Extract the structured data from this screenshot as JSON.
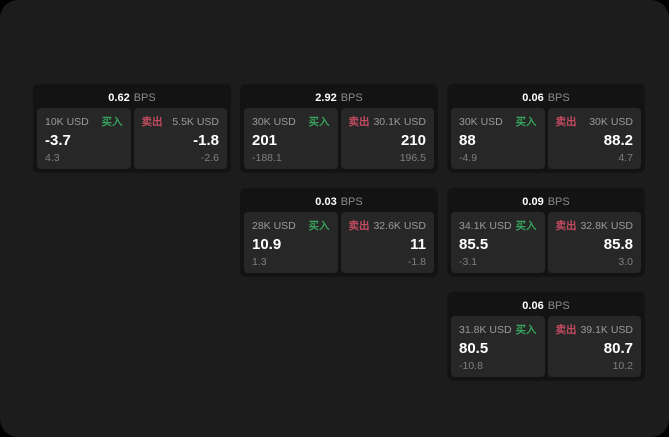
{
  "labels": {
    "bps": "BPS",
    "buy": "买入",
    "sell": "卖出"
  },
  "colors": {
    "background": "#000000",
    "panel": "#1c1c1c",
    "card": "#131313",
    "tile": "#272727",
    "buy_green": "#36a05c",
    "sell_red": "#c24b60",
    "value_text": "#ffffff",
    "muted_text": "#9a9a9a"
  },
  "cards": [
    {
      "bps": "0.62",
      "buy": {
        "size": "10K USD",
        "value": "-3.7",
        "sub": "4.3"
      },
      "sell": {
        "size": "5.5K USD",
        "value": "-1.8",
        "sub": "-2.6"
      }
    },
    {
      "bps": "2.92",
      "buy": {
        "size": "30K USD",
        "value": "201",
        "sub": "-188.1"
      },
      "sell": {
        "size": "30.1K USD",
        "value": "210",
        "sub": "196.5"
      }
    },
    {
      "bps": "0.06",
      "buy": {
        "size": "30K USD",
        "value": "88",
        "sub": "-4.9"
      },
      "sell": {
        "size": "30K USD",
        "value": "88.2",
        "sub": "4.7"
      }
    },
    {
      "bps": "0.03",
      "buy": {
        "size": "28K USD",
        "value": "10.9",
        "sub": "1.3"
      },
      "sell": {
        "size": "32.6K USD",
        "value": "11",
        "sub": "-1.8"
      }
    },
    {
      "bps": "0.09",
      "buy": {
        "size": "34.1K USD",
        "value": "85.5",
        "sub": "-3.1"
      },
      "sell": {
        "size": "32.8K USD",
        "value": "85.8",
        "sub": "3.0"
      }
    },
    {
      "bps": "0.06",
      "buy": {
        "size": "31.8K USD",
        "value": "80.5",
        "sub": "-10.8"
      },
      "sell": {
        "size": "39.1K USD",
        "value": "80.7",
        "sub": "10.2"
      }
    }
  ]
}
